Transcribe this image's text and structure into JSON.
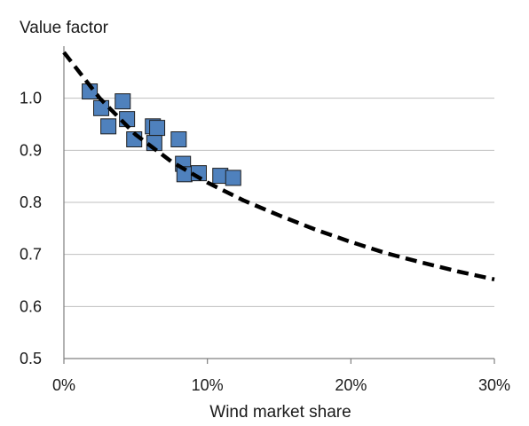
{
  "chart_data": {
    "type": "scatter",
    "ylabel": "Value factor",
    "xlabel": "Wind market share",
    "xlim": [
      0,
      0.3
    ],
    "ylim": [
      0.5,
      1.1
    ],
    "x_ticks": [
      {
        "value": 0.0,
        "label": "0%"
      },
      {
        "value": 0.1,
        "label": "10%"
      },
      {
        "value": 0.2,
        "label": "20%"
      },
      {
        "value": 0.3,
        "label": "30%"
      }
    ],
    "y_ticks": [
      {
        "value": 0.5,
        "label": "0.5"
      },
      {
        "value": 0.6,
        "label": "0.6"
      },
      {
        "value": 0.7,
        "label": "0.7"
      },
      {
        "value": 0.8,
        "label": "0.8"
      },
      {
        "value": 0.9,
        "label": "0.9"
      },
      {
        "value": 1.0,
        "label": "1.0"
      }
    ],
    "grid": "horizontal",
    "series": [
      {
        "marker": "square",
        "color": "#4f81bd",
        "points": [
          {
            "x": 0.018,
            "y": 1.013
          },
          {
            "x": 0.026,
            "y": 0.981
          },
          {
            "x": 0.041,
            "y": 0.994
          },
          {
            "x": 0.031,
            "y": 0.946
          },
          {
            "x": 0.044,
            "y": 0.96
          },
          {
            "x": 0.049,
            "y": 0.921
          },
          {
            "x": 0.062,
            "y": 0.946
          },
          {
            "x": 0.065,
            "y": 0.943
          },
          {
            "x": 0.063,
            "y": 0.914
          },
          {
            "x": 0.08,
            "y": 0.921
          },
          {
            "x": 0.083,
            "y": 0.874
          },
          {
            "x": 0.084,
            "y": 0.854
          },
          {
            "x": 0.094,
            "y": 0.856
          },
          {
            "x": 0.109,
            "y": 0.851
          },
          {
            "x": 0.118,
            "y": 0.847
          }
        ]
      },
      {
        "style": "dashed",
        "color": "#000000",
        "x": [
          0.0,
          0.025,
          0.05,
          0.075,
          0.1,
          0.125,
          0.15,
          0.175,
          0.2,
          0.225,
          0.25,
          0.275,
          0.3
        ],
        "y": [
          1.088,
          1.0,
          0.93,
          0.878,
          0.838,
          0.804,
          0.775,
          0.748,
          0.724,
          0.702,
          0.684,
          0.667,
          0.652
        ]
      }
    ]
  }
}
